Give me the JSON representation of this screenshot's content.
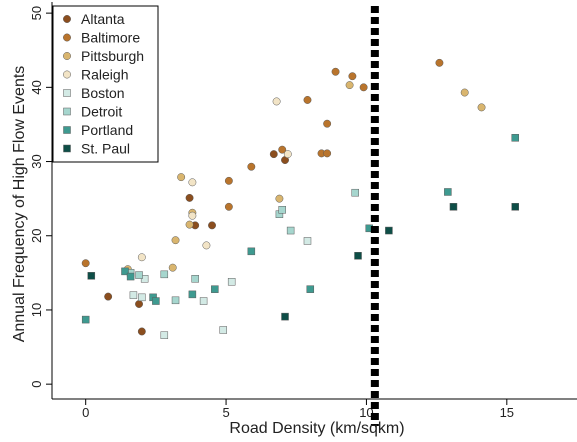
{
  "chart_data": {
    "type": "scatter",
    "title": "",
    "xlabel": "Road Density (km/sqkm)",
    "ylabel": "Annual Frequency of High Flow Events",
    "xlim": [
      -1.2,
      17.5
    ],
    "ylim": [
      -2,
      51.5
    ],
    "xticks": [
      0,
      5,
      10,
      15
    ],
    "yticks": [
      0,
      10,
      20,
      30,
      40,
      50
    ],
    "grid": false,
    "legend_position": "top-left",
    "reference_line": {
      "x": 10.3,
      "style": "dashed"
    },
    "series": [
      {
        "name": "Altanta",
        "marker": "circle",
        "color": "#8B4E1E",
        "points": [
          [
            0.8,
            11.8
          ],
          [
            1.9,
            10.8
          ],
          [
            2.0,
            7.1
          ],
          [
            3.7,
            25.1
          ],
          [
            3.9,
            21.4
          ],
          [
            4.5,
            21.4
          ],
          [
            6.7,
            31.0
          ],
          [
            7.1,
            30.2
          ]
        ]
      },
      {
        "name": "Baltimore",
        "marker": "circle",
        "color": "#B9742C",
        "points": [
          [
            0.0,
            16.3
          ],
          [
            5.1,
            27.4
          ],
          [
            5.1,
            23.9
          ],
          [
            5.9,
            29.3
          ],
          [
            7.0,
            31.6
          ],
          [
            7.9,
            38.3
          ],
          [
            8.4,
            31.1
          ],
          [
            8.6,
            31.1
          ],
          [
            8.6,
            35.1
          ],
          [
            8.9,
            42.1
          ],
          [
            9.5,
            41.5
          ],
          [
            9.9,
            40.0
          ],
          [
            12.6,
            43.3
          ]
        ]
      },
      {
        "name": "Pittsburgh",
        "marker": "circle",
        "color": "#D9B56E",
        "points": [
          [
            1.5,
            15.5
          ],
          [
            3.1,
            15.7
          ],
          [
            3.2,
            19.4
          ],
          [
            3.4,
            27.9
          ],
          [
            3.8,
            23.1
          ],
          [
            3.7,
            21.5
          ],
          [
            6.9,
            25.0
          ],
          [
            9.4,
            40.3
          ],
          [
            13.5,
            39.3
          ],
          [
            14.1,
            37.3
          ]
        ]
      },
      {
        "name": "Raleigh",
        "marker": "circle",
        "color": "#F2E4C6",
        "points": [
          [
            2.0,
            17.1
          ],
          [
            3.8,
            27.2
          ],
          [
            3.8,
            22.7
          ],
          [
            4.3,
            18.7
          ],
          [
            6.8,
            38.1
          ],
          [
            7.2,
            31.0
          ]
        ]
      },
      {
        "name": "Boston",
        "marker": "square",
        "color": "#D3EAE5",
        "points": [
          [
            1.7,
            12.0
          ],
          [
            2.0,
            11.7
          ],
          [
            2.1,
            14.2
          ],
          [
            2.8,
            6.6
          ],
          [
            4.9,
            7.3
          ],
          [
            4.2,
            11.2
          ],
          [
            5.2,
            13.8
          ],
          [
            7.9,
            19.3
          ]
        ]
      },
      {
        "name": "Detroit",
        "marker": "square",
        "color": "#A6D6CE",
        "points": [
          [
            1.6,
            15.0
          ],
          [
            1.9,
            14.7
          ],
          [
            2.8,
            14.8
          ],
          [
            3.2,
            11.3
          ],
          [
            3.9,
            14.2
          ],
          [
            6.9,
            22.9
          ],
          [
            7.0,
            23.5
          ],
          [
            7.3,
            20.7
          ],
          [
            9.6,
            25.8
          ]
        ]
      },
      {
        "name": "Portland",
        "marker": "square",
        "color": "#3E9A90",
        "points": [
          [
            0.0,
            8.7
          ],
          [
            1.4,
            15.2
          ],
          [
            1.6,
            14.5
          ],
          [
            2.4,
            11.7
          ],
          [
            2.5,
            11.2
          ],
          [
            3.8,
            12.1
          ],
          [
            4.6,
            12.8
          ],
          [
            5.9,
            17.9
          ],
          [
            8.0,
            12.8
          ],
          [
            10.1,
            21.0
          ],
          [
            12.9,
            25.9
          ],
          [
            15.3,
            33.2
          ]
        ]
      },
      {
        "name": "St. Paul",
        "marker": "square",
        "color": "#0E4E47",
        "points": [
          [
            0.2,
            14.6
          ],
          [
            7.1,
            9.1
          ],
          [
            9.7,
            17.3
          ],
          [
            10.8,
            20.7
          ],
          [
            13.1,
            23.9
          ],
          [
            15.3,
            23.9
          ]
        ]
      }
    ]
  }
}
